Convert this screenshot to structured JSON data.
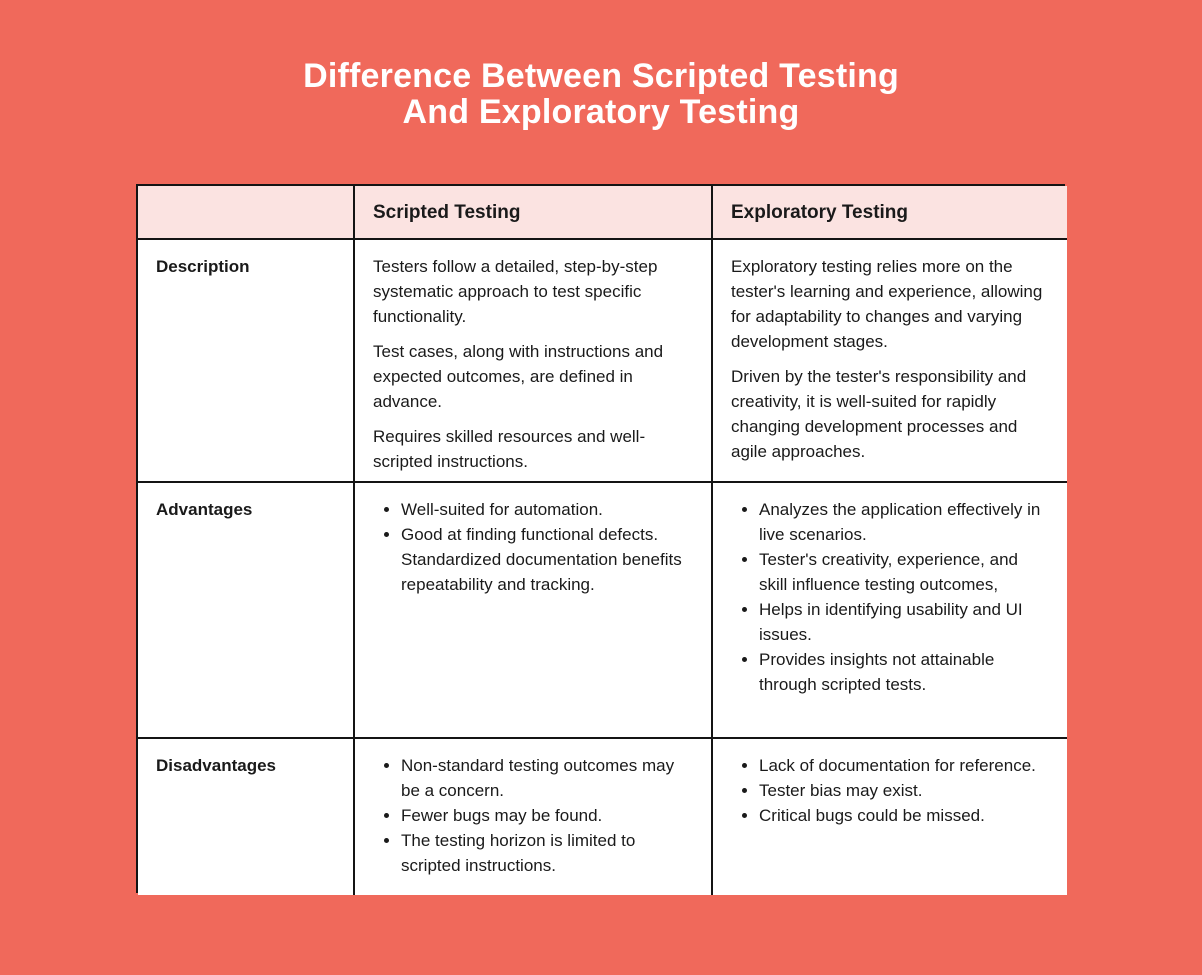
{
  "page": {
    "title_line1": "Difference Between Scripted Testing",
    "title_line2": "And Exploratory Testing"
  },
  "colors": {
    "background": "#F0695B",
    "header_background": "#FBE3E1",
    "cell_background": "#FFFFFF",
    "border": "#141414",
    "title_text": "#FFFFFF",
    "body_text": "#1A1A1A"
  },
  "table": {
    "columns": [
      "",
      "Scripted Testing",
      "Exploratory Testing"
    ],
    "rows": [
      {
        "label": "Description",
        "scripted": {
          "paragraphs": [
            "Testers follow a detailed, step-by-step systematic approach to test specific functionality.",
            "Test cases, along with instructions and expected outcomes, are defined in advance.",
            "Requires skilled resources and well-scripted instructions."
          ]
        },
        "exploratory": {
          "paragraphs": [
            "Exploratory testing relies more on the tester's learning and experience, allowing for adaptability to changes and varying development stages.",
            "Driven by the tester's responsibility and creativity, it is well-suited for rapidly changing development processes and agile approaches."
          ]
        }
      },
      {
        "label": "Advantages",
        "scripted": {
          "bullets": [
            "Well-suited for automation.",
            "Good at finding functional defects. Standardized documentation benefits repeatability and tracking."
          ]
        },
        "exploratory": {
          "bullets": [
            "Analyzes the application effectively in live scenarios.",
            "Tester's creativity, experience, and skill influence testing outcomes,",
            "Helps in identifying usability and UI issues.",
            "Provides insights not attainable through scripted tests."
          ]
        }
      },
      {
        "label": "Disadvantages",
        "scripted": {
          "bullets": [
            "Non-standard testing outcomes may be a concern.",
            "Fewer bugs may be found.",
            "The testing horizon is limited to scripted instructions."
          ]
        },
        "exploratory": {
          "bullets": [
            "Lack of documentation for reference.",
            "Tester bias may exist.",
            "Critical bugs could be missed."
          ]
        }
      }
    ]
  }
}
